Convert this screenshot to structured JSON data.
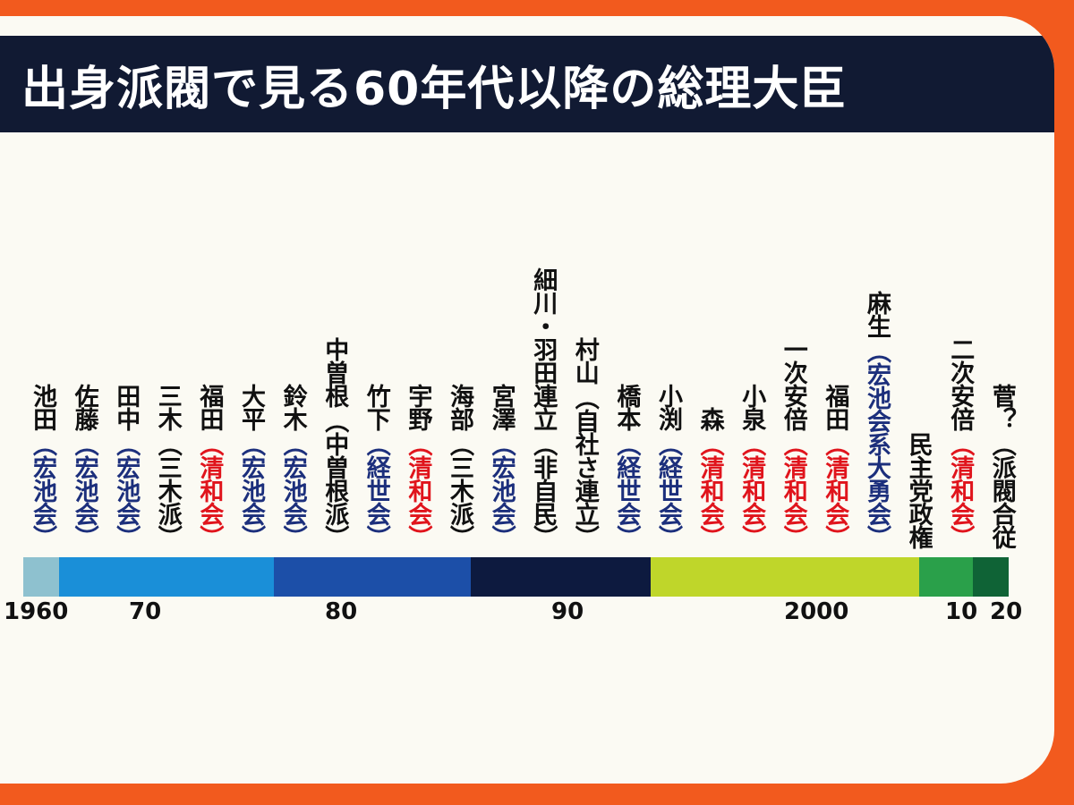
{
  "title": "出身派閥で見る60年代以降の総理大臣",
  "colors": {
    "background": "#f25a1e",
    "board": "#fbfaf3",
    "title_bar": "#111a33",
    "faction_blue": "#1c2f7c",
    "faction_red": "#e0141c"
  },
  "prime_ministers": [
    {
      "name": "池田",
      "faction": "（宏池会）",
      "faction_color": "blue"
    },
    {
      "name": "佐藤",
      "faction": "（宏池会）",
      "faction_color": "blue"
    },
    {
      "name": "田中",
      "faction": "（宏池会）",
      "faction_color": "blue"
    },
    {
      "name": "三木",
      "faction": "（三木派）",
      "faction_color": "black"
    },
    {
      "name": "福田",
      "faction": "（清和会）",
      "faction_color": "red"
    },
    {
      "name": "大平",
      "faction": "（宏池会）",
      "faction_color": "blue"
    },
    {
      "name": "鈴木",
      "faction": "（宏池会）",
      "faction_color": "blue"
    },
    {
      "name": "中曽根",
      "faction": "（中曽根派）",
      "faction_color": "black"
    },
    {
      "name": "竹下",
      "faction": "（経世会）",
      "faction_color": "blue"
    },
    {
      "name": "宇野",
      "faction": "（清和会）",
      "faction_color": "red"
    },
    {
      "name": "海部",
      "faction": "（三木派）",
      "faction_color": "black"
    },
    {
      "name": "宮澤",
      "faction": "（宏池会）",
      "faction_color": "blue"
    },
    {
      "name": "細川・羽田連立",
      "faction": "（非自民）",
      "faction_color": "black"
    },
    {
      "name": "村山",
      "faction": "（自社さ連立）",
      "faction_color": "black"
    },
    {
      "name": "橋本",
      "faction": "（経世会）",
      "faction_color": "blue"
    },
    {
      "name": "小渕",
      "faction": "（経世会）",
      "faction_color": "blue"
    },
    {
      "name": "森",
      "faction": "（清和会）",
      "faction_color": "red"
    },
    {
      "name": "小泉",
      "faction": "（清和会）",
      "faction_color": "red"
    },
    {
      "name": "一次安倍",
      "faction": "（清和会）",
      "faction_color": "red"
    },
    {
      "name": "福田",
      "faction": "（清和会）",
      "faction_color": "red"
    },
    {
      "name": "麻生",
      "faction": "（宏池会系大勇会）",
      "faction_color": "blue"
    },
    {
      "name": "民主党政権",
      "faction": "",
      "faction_color": "black"
    },
    {
      "name": "二次安倍",
      "faction": "（清和会）",
      "faction_color": "red"
    },
    {
      "name": "菅？",
      "faction": "（派閥合従",
      "faction_color": "black"
    }
  ],
  "timeline": {
    "start_year": 1960,
    "end_year": 2020,
    "segments": [
      {
        "from": 1960,
        "to": 1962,
        "color": "#8ec1cf"
      },
      {
        "from": 1962,
        "to": 1974,
        "color": "#1a8fd8"
      },
      {
        "from": 1974,
        "to": 1985,
        "color": "#1c4fa8"
      },
      {
        "from": 1985,
        "to": 1995,
        "color": "#0d1a3f"
      },
      {
        "from": 1995,
        "to": 2010,
        "color": "#bfd62a"
      },
      {
        "from": 2010,
        "to": 2013,
        "color": "#2aa04a"
      },
      {
        "from": 2013,
        "to": 2015,
        "color": "#0f6336"
      }
    ],
    "ticks": [
      {
        "label": "1960",
        "year": 1960
      },
      {
        "label": "70",
        "year": 1967
      },
      {
        "label": "80",
        "year": 1979
      },
      {
        "label": "90",
        "year": 1993
      },
      {
        "label": "2000",
        "year": 2008
      },
      {
        "label": "10",
        "year": 2013
      },
      {
        "label": "20",
        "year": 2016
      }
    ]
  }
}
